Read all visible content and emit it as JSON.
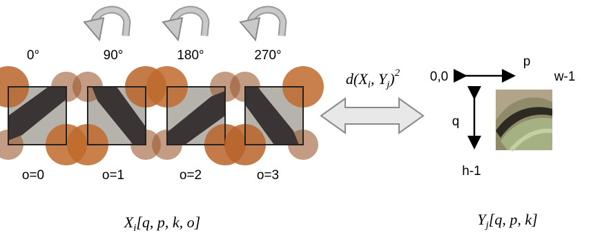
{
  "rotations": [
    "0°",
    "90°",
    "180°",
    "270°"
  ],
  "orientations": [
    "o=0",
    "o=1",
    "o=2",
    "o=3"
  ],
  "formula": {
    "d": "d",
    "open": "(",
    "x": "X",
    "x_sub": "i",
    "comma": ", ",
    "y": "Y",
    "y_sub": "j",
    "close": ")",
    "power": "2"
  },
  "patch_axes": {
    "origin": "0,0",
    "width_label": "p",
    "width_end": "w-1",
    "height_label": "q",
    "height_end": "h-1"
  },
  "caption_left": {
    "base": "X",
    "sub": "i",
    "args": "[q, p, k, o]"
  },
  "caption_right": {
    "base": "Y",
    "sub": "j",
    "args": "[q, p, k]"
  }
}
